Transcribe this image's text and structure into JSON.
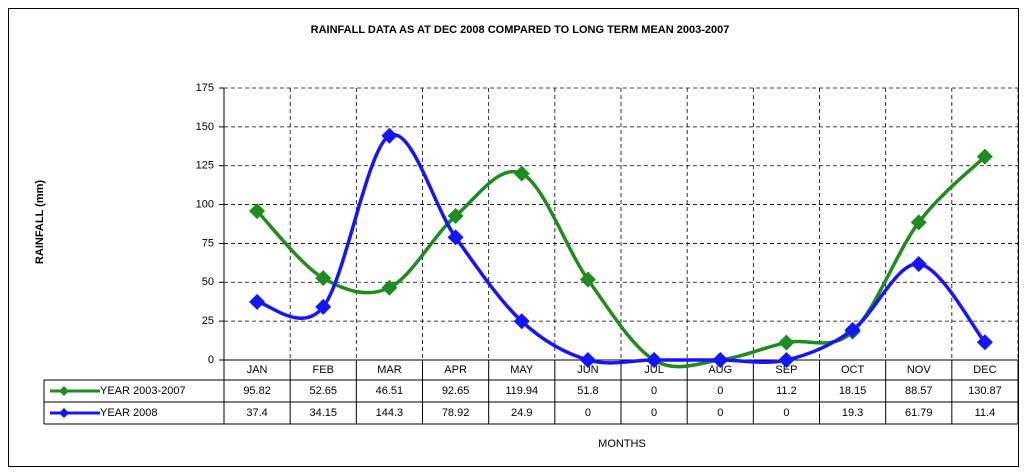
{
  "chart_data": {
    "type": "line",
    "title": "RAINFALL DATA AS AT DEC 2008 COMPARED TO LONG TERM MEAN 2003-2007",
    "x_label": "MONTHS",
    "y_label": "RAINFALL (mm)",
    "categories": [
      "JAN",
      "FEB",
      "MAR",
      "APR",
      "MAY",
      "JUN",
      "JUL",
      "AUG",
      "SEP",
      "OCT",
      "NOV",
      "DEC"
    ],
    "series": [
      {
        "name": "YEAR 2003-2007",
        "color": "#1e8c1e",
        "values": [
          95.82,
          52.65,
          46.51,
          92.65,
          119.94,
          51.8,
          0,
          0,
          11.2,
          18.15,
          88.57,
          130.87
        ]
      },
      {
        "name": "YEAR 2008",
        "color": "#1414ff",
        "values": [
          37.4,
          34.15,
          144.3,
          78.92,
          24.9,
          0,
          0,
          0,
          0,
          19.3,
          61.79,
          11.4
        ]
      }
    ],
    "ylim": [
      0,
      175
    ],
    "yticks": [
      0,
      25,
      50,
      75,
      100,
      125,
      150,
      175
    ],
    "grid": true,
    "smooth": true,
    "data_table": true
  }
}
